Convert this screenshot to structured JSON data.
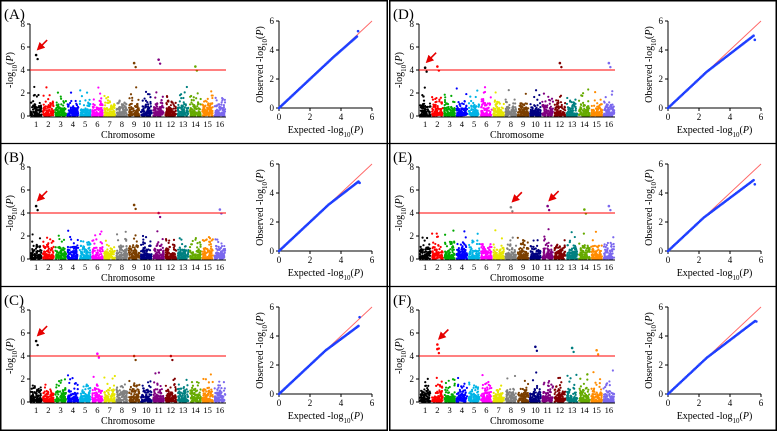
{
  "figure": {
    "colors": {
      "chromosomes": [
        "#000000",
        "#ff0000",
        "#00aa00",
        "#0000ff",
        "#00b4e6",
        "#ff00ff",
        "#e6e600",
        "#808080",
        "#7b3f00",
        "#000080",
        "#800080",
        "#800000",
        "#008080",
        "#66aa00",
        "#ff8c00",
        "#7b68ee"
      ],
      "threshold_line": "#ff0000",
      "qq_line": "#ff6666",
      "qq_points": "#1f3fff",
      "arrow": "#e60000"
    },
    "icons": {
      "arrow": "red-arrow-icon"
    }
  },
  "chart_data": [
    {
      "panel": "(A)",
      "type": "scatter",
      "subtype": "manhattan-and-qq",
      "manhattan": {
        "xlabel": "Chromosome",
        "ylabel": "-log10(P)",
        "categories": [
          "1",
          "2",
          "3",
          "4",
          "5",
          "6",
          "7",
          "8",
          "9",
          "10",
          "11",
          "12",
          "13",
          "14",
          "15",
          "16"
        ],
        "ylim": [
          0,
          8
        ],
        "yticks": [
          0,
          2,
          4,
          6,
          8
        ],
        "threshold": 4,
        "peaks": [
          {
            "chromosome": 1,
            "value": 5.3,
            "arrow": true
          },
          {
            "chromosome": 9,
            "value": 4.6
          },
          {
            "chromosome": 11,
            "value": 4.9
          },
          {
            "chromosome": 14,
            "value": 4.3
          }
        ]
      },
      "qq": {
        "xlabel": "Expected -log10(P)",
        "ylabel": "Observed -log10(P)",
        "xlim": [
          0,
          6
        ],
        "ylim": [
          0,
          6
        ],
        "xticks": [
          0,
          2,
          4,
          6
        ],
        "yticks": [
          0,
          2,
          4,
          6
        ],
        "points_end": [
          5.1,
          5.3
        ],
        "deflection": 0.1,
        "deflect_start": 3.5
      }
    },
    {
      "panel": "(B)",
      "type": "scatter",
      "subtype": "manhattan-and-qq",
      "manhattan": {
        "xlabel": "Chromosome",
        "ylabel": "-log10(P)",
        "categories": [
          "1",
          "2",
          "3",
          "4",
          "5",
          "6",
          "7",
          "8",
          "9",
          "10",
          "11",
          "12",
          "13",
          "14",
          "15",
          "16"
        ],
        "ylim": [
          0,
          8
        ],
        "yticks": [
          0,
          2,
          4,
          6,
          8
        ],
        "threshold": 4,
        "peaks": [
          {
            "chromosome": 1,
            "value": 4.6,
            "arrow": true
          },
          {
            "chromosome": 9,
            "value": 4.7
          },
          {
            "chromosome": 11,
            "value": 4.0
          },
          {
            "chromosome": 16,
            "value": 4.3
          }
        ]
      },
      "qq": {
        "xlabel": "Expected -log10(P)",
        "ylabel": "Observed -log10(P)",
        "xlim": [
          0,
          6
        ],
        "ylim": [
          0,
          6
        ],
        "xticks": [
          0,
          2,
          4,
          6
        ],
        "yticks": [
          0,
          2,
          4,
          6
        ],
        "points_end": [
          5.2,
          4.7
        ],
        "deflection": 0.35,
        "deflect_start": 3.2
      }
    },
    {
      "panel": "(C)",
      "type": "scatter",
      "subtype": "manhattan-and-qq",
      "manhattan": {
        "xlabel": "Chromosome",
        "ylabel": "-log10(P)",
        "categories": [
          "1",
          "2",
          "3",
          "4",
          "5",
          "6",
          "7",
          "8",
          "9",
          "10",
          "11",
          "12",
          "13",
          "14",
          "15",
          "16"
        ],
        "ylim": [
          0,
          8
        ],
        "yticks": [
          0,
          2,
          4,
          6,
          8
        ],
        "threshold": 4,
        "peaks": [
          {
            "chromosome": 1,
            "value": 5.3,
            "arrow": true
          },
          {
            "chromosome": 6,
            "value": 4.2
          },
          {
            "chromosome": 9,
            "value": 4.0
          },
          {
            "chromosome": 12,
            "value": 4.0
          }
        ]
      },
      "qq": {
        "xlabel": "Expected -log10(P)",
        "ylabel": "Observed -log10(P)",
        "xlim": [
          0,
          6
        ],
        "ylim": [
          0,
          6
        ],
        "xticks": [
          0,
          2,
          4,
          6
        ],
        "yticks": [
          0,
          2,
          4,
          6
        ],
        "points_end": [
          5.2,
          5.3
        ],
        "deflection": 0.45,
        "deflect_start": 3.0
      }
    },
    {
      "panel": "(D)",
      "type": "scatter",
      "subtype": "manhattan-and-qq",
      "manhattan": {
        "xlabel": "Chromosome",
        "ylabel": "-log10(P)",
        "categories": [
          "1",
          "2",
          "3",
          "4",
          "5",
          "6",
          "7",
          "8",
          "9",
          "10",
          "11",
          "12",
          "13",
          "14",
          "15",
          "16"
        ],
        "ylim": [
          0,
          8
        ],
        "yticks": [
          0,
          2,
          4,
          6,
          8
        ],
        "threshold": 4,
        "peaks": [
          {
            "chromosome": 1,
            "value": 4.2,
            "arrow": true
          },
          {
            "chromosome": 2,
            "value": 4.3
          },
          {
            "chromosome": 12,
            "value": 4.6
          },
          {
            "chromosome": 16,
            "value": 4.6
          }
        ]
      },
      "qq": {
        "xlabel": "Expected -log10(P)",
        "ylabel": "Observed -log10(P)",
        "xlim": [
          0,
          6
        ],
        "ylim": [
          0,
          6
        ],
        "xticks": [
          0,
          2,
          4,
          6
        ],
        "yticks": [
          0,
          2,
          4,
          6
        ],
        "points_end": [
          5.6,
          4.7
        ],
        "deflection": 0.55,
        "deflect_start": 2.5
      }
    },
    {
      "panel": "(E)",
      "type": "scatter",
      "subtype": "manhattan-and-qq",
      "manhattan": {
        "xlabel": "Chromosome",
        "ylabel": "-log10(P)",
        "categories": [
          "1",
          "2",
          "3",
          "4",
          "5",
          "6",
          "7",
          "8",
          "9",
          "10",
          "11",
          "12",
          "13",
          "14",
          "15",
          "16"
        ],
        "ylim": [
          0,
          8
        ],
        "yticks": [
          0,
          2,
          4,
          6,
          8
        ],
        "threshold": 4,
        "peaks": [
          {
            "chromosome": 8,
            "value": 4.5,
            "arrow": true
          },
          {
            "chromosome": 11,
            "value": 4.6,
            "arrow": true
          },
          {
            "chromosome": 14,
            "value": 4.3
          },
          {
            "chromosome": 16,
            "value": 4.6
          }
        ]
      },
      "qq": {
        "xlabel": "Expected -log10(P)",
        "ylabel": "Observed -log10(P)",
        "xlim": [
          0,
          6
        ],
        "ylim": [
          0,
          6
        ],
        "xticks": [
          0,
          2,
          4,
          6
        ],
        "yticks": [
          0,
          2,
          4,
          6
        ],
        "points_end": [
          5.6,
          4.6
        ],
        "deflection": 0.65,
        "deflect_start": 2.3
      }
    },
    {
      "panel": "(F)",
      "type": "scatter",
      "subtype": "manhattan-and-qq",
      "manhattan": {
        "xlabel": "Chromosome",
        "ylabel": "-log10(P)",
        "categories": [
          "1",
          "2",
          "3",
          "4",
          "5",
          "6",
          "7",
          "8",
          "9",
          "10",
          "11",
          "12",
          "13",
          "14",
          "15",
          "16"
        ],
        "ylim": [
          0,
          8
        ],
        "yticks": [
          0,
          2,
          4,
          6,
          8
        ],
        "threshold": 4,
        "peaks": [
          {
            "chromosome": 2,
            "value": 5.0,
            "arrow": true
          },
          {
            "chromosome": 2,
            "value": 4.6
          },
          {
            "chromosome": 10,
            "value": 4.8
          },
          {
            "chromosome": 13,
            "value": 4.7
          },
          {
            "chromosome": 15,
            "value": 4.5
          }
        ]
      },
      "qq": {
        "xlabel": "Expected -log10(P)",
        "ylabel": "Observed -log10(P)",
        "xlim": [
          0,
          6
        ],
        "ylim": [
          0,
          6
        ],
        "xticks": [
          0,
          2,
          4,
          6
        ],
        "yticks": [
          0,
          2,
          4,
          6
        ],
        "points_end": [
          5.7,
          5.0
        ],
        "deflection": 0.6,
        "deflect_start": 2.5
      }
    }
  ]
}
